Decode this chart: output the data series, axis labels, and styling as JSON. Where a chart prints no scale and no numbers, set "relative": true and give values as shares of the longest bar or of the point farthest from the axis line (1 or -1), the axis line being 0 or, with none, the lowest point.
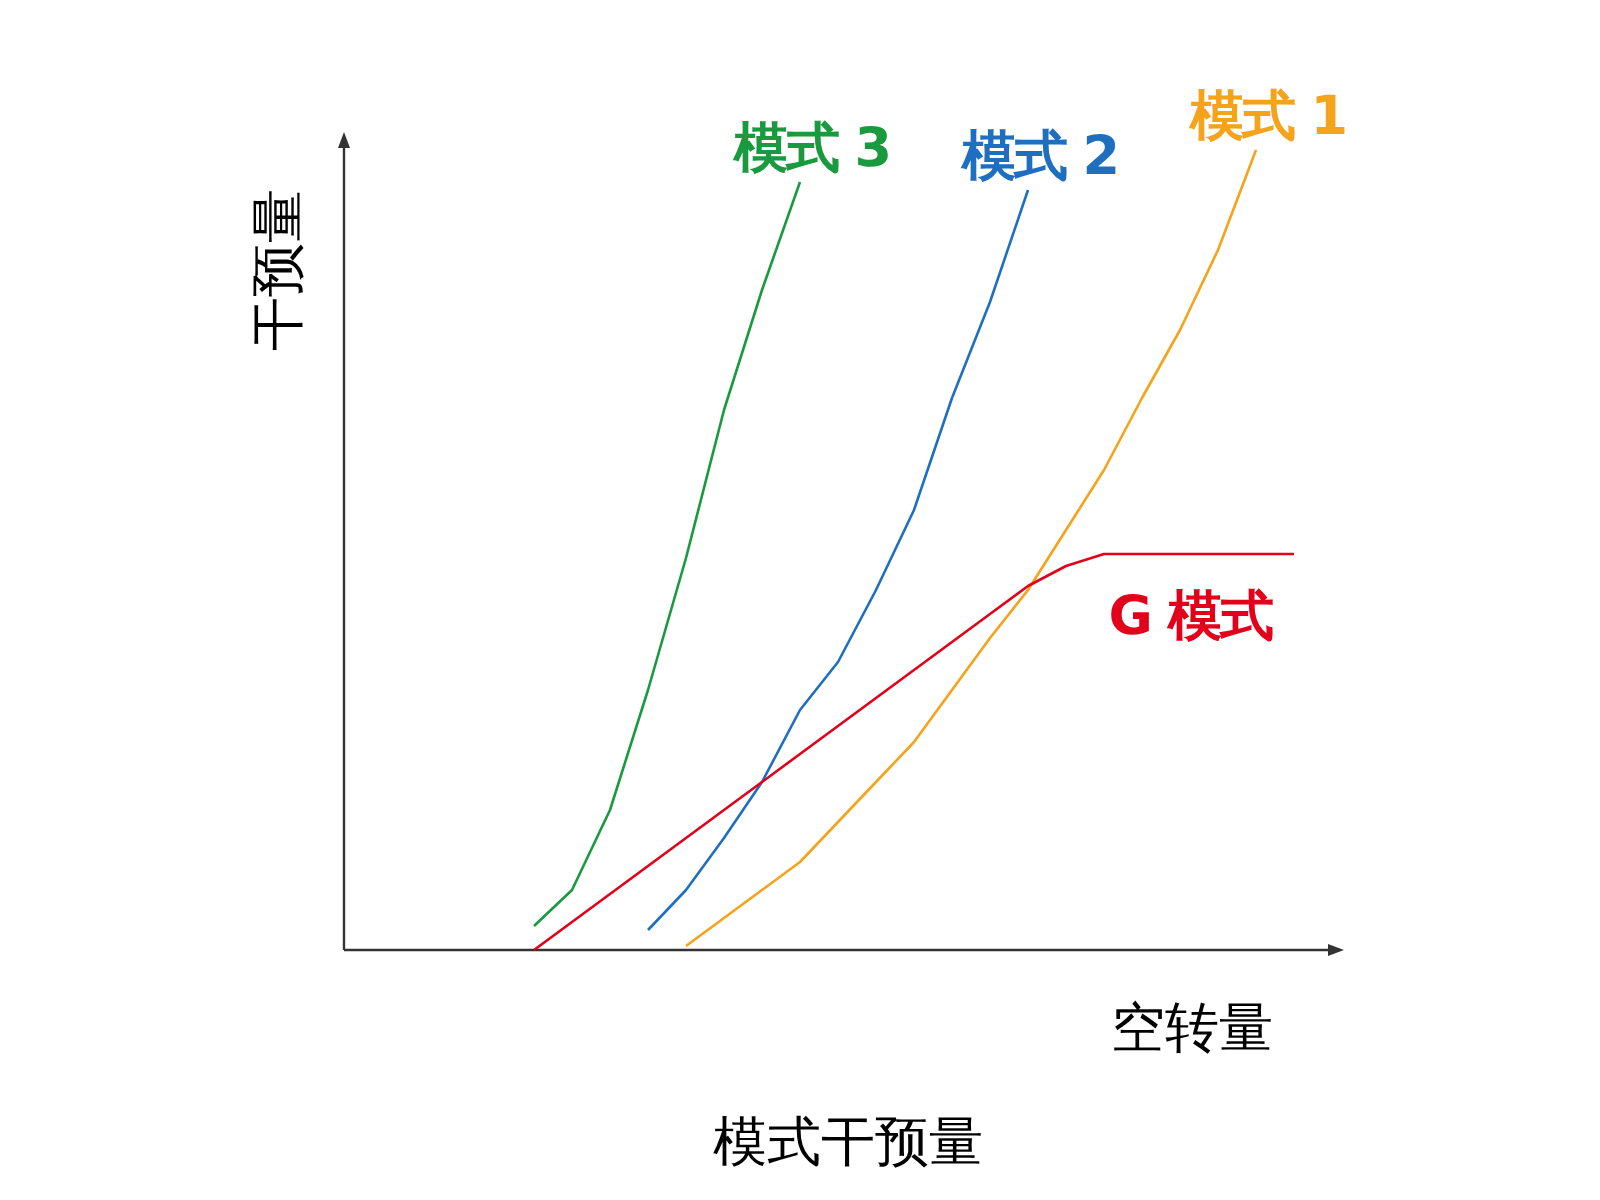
{
  "chart_data": {
    "type": "line",
    "relative": true,
    "ylabel": "干预量",
    "xlabel": "空转量",
    "annotations": [
      "模式干预量"
    ],
    "categories": [
      null,
      null,
      null,
      null,
      null,
      null,
      null,
      null,
      null,
      null,
      null,
      null,
      null,
      null,
      null,
      null,
      null,
      null,
      null,
      null,
      null,
      null,
      null,
      null,
      null,
      null
    ],
    "series": [
      {
        "name": "模式 3",
        "color": "#1a9a3e",
        "values": [
          null,
          null,
          null,
          null,
          null,
          0.03,
          0.075,
          0.175,
          0.325,
          0.49,
          0.675,
          0.825,
          0.96,
          null,
          null,
          null,
          null,
          null,
          null,
          null,
          null,
          null,
          null,
          null,
          null,
          null
        ]
      },
      {
        "name": "模式 2",
        "color": "#1f6fc0",
        "values": [
          null,
          null,
          null,
          null,
          null,
          null,
          null,
          null,
          0.025,
          0.075,
          0.14,
          0.21,
          0.3,
          0.36,
          0.45,
          0.55,
          0.69,
          0.81,
          0.95,
          null,
          null,
          null,
          null,
          null,
          null,
          null
        ]
      },
      {
        "name": "模式 1",
        "color": "#f5a31a",
        "values": [
          null,
          null,
          null,
          null,
          null,
          null,
          null,
          null,
          null,
          0.005,
          0.04,
          0.075,
          0.11,
          0.16,
          0.21,
          0.26,
          0.325,
          0.39,
          0.45,
          0.525,
          0.6,
          0.69,
          0.775,
          0.875,
          1,
          null
        ]
      },
      {
        "name": "G 模式",
        "color": "#e3001b",
        "values": [
          null,
          null,
          null,
          null,
          null,
          0,
          0.035,
          0.07,
          0.105,
          0.14,
          0.175,
          0.21,
          0.245,
          0.28,
          0.315,
          0.35,
          0.385,
          0.42,
          0.455,
          0.48,
          0.495,
          0.495,
          0.495,
          0.495,
          0.495,
          0.495
        ]
      }
    ]
  }
}
